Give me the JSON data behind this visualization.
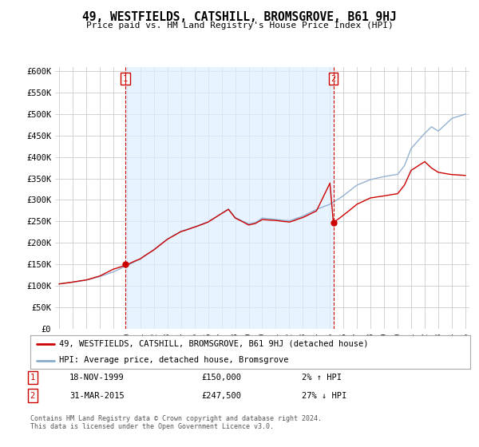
{
  "title": "49, WESTFIELDS, CATSHILL, BROMSGROVE, B61 9HJ",
  "subtitle": "Price paid vs. HM Land Registry's House Price Index (HPI)",
  "ylabel_ticks": [
    "£0",
    "£50K",
    "£100K",
    "£150K",
    "£200K",
    "£250K",
    "£300K",
    "£350K",
    "£400K",
    "£450K",
    "£500K",
    "£550K",
    "£600K"
  ],
  "ytick_values": [
    0,
    50000,
    100000,
    150000,
    200000,
    250000,
    300000,
    350000,
    400000,
    450000,
    500000,
    550000,
    600000
  ],
  "ylim": [
    0,
    610000
  ],
  "xlim_start": 1994.7,
  "xlim_end": 2025.3,
  "sale1_year": 1999.88,
  "sale1_price": 150000,
  "sale1_label": "1",
  "sale2_year": 2015.25,
  "sale2_price": 247500,
  "sale2_label": "2",
  "vline_color": "#cc0000",
  "hpi_color": "#88aacc",
  "price_color": "#cc0000",
  "fill_color": "#ddeeff",
  "legend_line1": "49, WESTFIELDS, CATSHILL, BROMSGROVE, B61 9HJ (detached house)",
  "legend_line2": "HPI: Average price, detached house, Bromsgrove",
  "table_row1_num": "1",
  "table_row1_date": "18-NOV-1999",
  "table_row1_price": "£150,000",
  "table_row1_hpi": "2% ↑ HPI",
  "table_row2_num": "2",
  "table_row2_date": "31-MAR-2015",
  "table_row2_price": "£247,500",
  "table_row2_hpi": "27% ↓ HPI",
  "footer": "Contains HM Land Registry data © Crown copyright and database right 2024.\nThis data is licensed under the Open Government Licence v3.0.",
  "background_color": "#ffffff",
  "grid_color": "#cccccc"
}
